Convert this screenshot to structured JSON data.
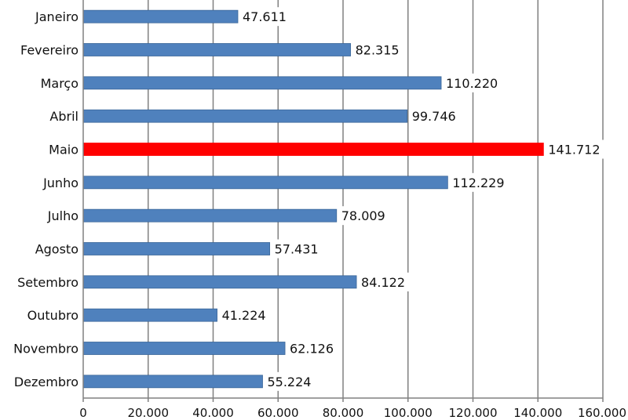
{
  "chart_data": {
    "type": "bar",
    "orientation": "horizontal",
    "title": "",
    "xlabel": "",
    "ylabel": "",
    "categories": [
      "Janeiro",
      "Fevereiro",
      "Março",
      "Abril",
      "Maio",
      "Junho",
      "Julho",
      "Agosto",
      "Setembro",
      "Outubro",
      "Novembro",
      "Dezembro"
    ],
    "values": [
      47611,
      82315,
      110220,
      99746,
      141712,
      112229,
      78009,
      57431,
      84122,
      41224,
      62126,
      55224
    ],
    "value_labels": [
      "47.611",
      "82.315",
      "110.220",
      "99.746",
      "141.712",
      "112.229",
      "78.009",
      "57.431",
      "84.122",
      "41.224",
      "62.126",
      "55.224"
    ],
    "xlim": [
      0,
      160000
    ],
    "x_ticks": [
      0,
      20000,
      40000,
      60000,
      80000,
      100000,
      120000,
      140000,
      160000
    ],
    "x_tick_labels": [
      "0",
      "20.000",
      "40.000",
      "60.000",
      "80.000",
      "100.000",
      "120.000",
      "140.000",
      "160.000"
    ],
    "grid": "vertical",
    "legend": "none",
    "highlight_index": 4,
    "colors": {
      "bar": "#4f81bd",
      "bar_edge": "#3a6699",
      "highlight": "#ff0000",
      "grid": "#808080",
      "axis": "#808080",
      "text": "#111111"
    }
  }
}
